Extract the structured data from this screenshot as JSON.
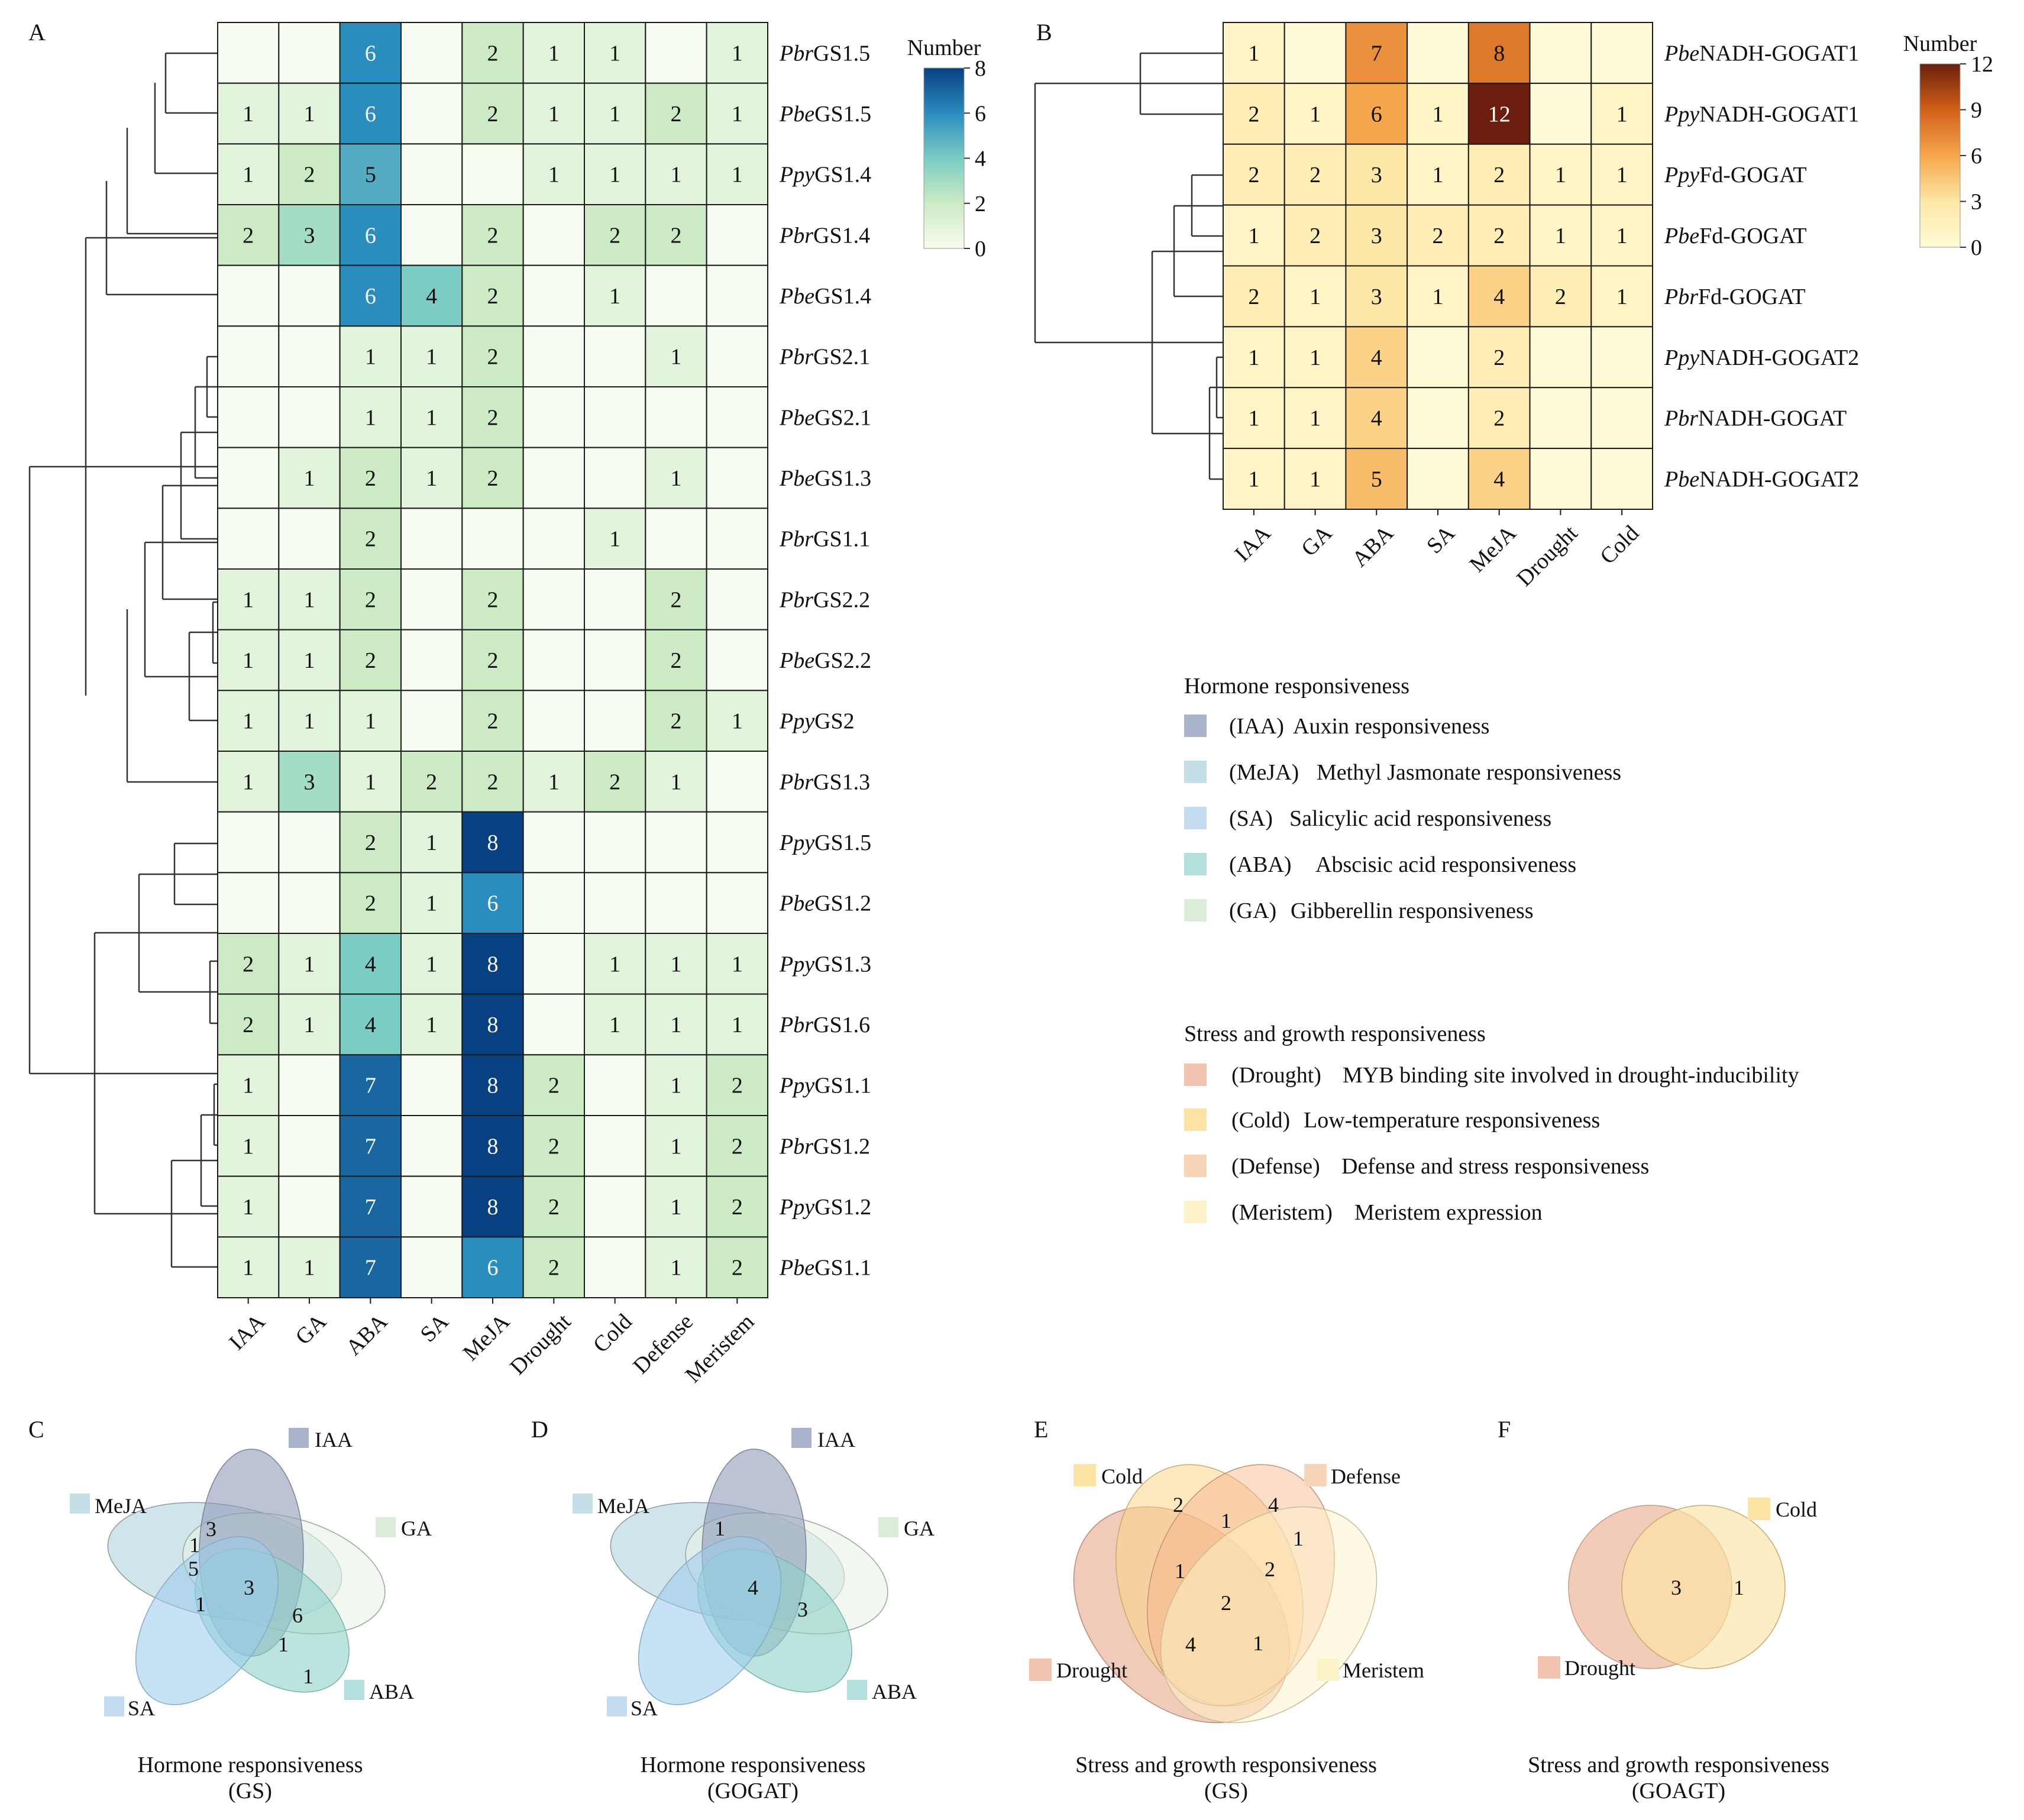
{
  "panels": {
    "A": "A",
    "B": "B",
    "C": "C",
    "D": "D",
    "E": "E",
    "F": "F"
  },
  "chart_data": [
    {
      "type": "heatmap",
      "panel": "A",
      "columns": [
        "IAA",
        "GA",
        "ABA",
        "SA",
        "MeJA",
        "Drought",
        "Cold",
        "Defense",
        "Meristem"
      ],
      "rows": [
        {
          "pre": "Pbr",
          "post": "GS1.5"
        },
        {
          "pre": "Pbe",
          "post": "GS1.5"
        },
        {
          "pre": "Ppy",
          "post": "GS1.4"
        },
        {
          "pre": "Pbr",
          "post": "GS1.4"
        },
        {
          "pre": "Pbe",
          "post": "GS1.4"
        },
        {
          "pre": "Pbr",
          "post": "GS2.1"
        },
        {
          "pre": "Pbe",
          "post": "GS2.1"
        },
        {
          "pre": "Pbe",
          "post": "GS1.3"
        },
        {
          "pre": "Pbr",
          "post": "GS1.1"
        },
        {
          "pre": "Pbr",
          "post": "GS2.2"
        },
        {
          "pre": "Pbe",
          "post": "GS2.2"
        },
        {
          "pre": "Ppy",
          "post": "GS2"
        },
        {
          "pre": "Pbr",
          "post": "GS1.3"
        },
        {
          "pre": "Ppy",
          "post": "GS1.5"
        },
        {
          "pre": "Pbe",
          "post": "GS1.2"
        },
        {
          "pre": "Ppy",
          "post": "GS1.3"
        },
        {
          "pre": "Pbr",
          "post": "GS1.6"
        },
        {
          "pre": "Ppy",
          "post": "GS1.1"
        },
        {
          "pre": "Pbr",
          "post": "GS1.2"
        },
        {
          "pre": "Ppy",
          "post": "GS1.2"
        },
        {
          "pre": "Pbe",
          "post": "GS1.1"
        }
      ],
      "values": [
        [
          0,
          0,
          6,
          0,
          2,
          1,
          1,
          0,
          1
        ],
        [
          1,
          1,
          6,
          0,
          2,
          1,
          1,
          2,
          1
        ],
        [
          1,
          2,
          5,
          0,
          0,
          1,
          1,
          1,
          1
        ],
        [
          2,
          3,
          6,
          0,
          2,
          0,
          2,
          2,
          0
        ],
        [
          0,
          0,
          6,
          4,
          2,
          0,
          1,
          0,
          0
        ],
        [
          0,
          0,
          1,
          1,
          2,
          0,
          0,
          1,
          0
        ],
        [
          0,
          0,
          1,
          1,
          2,
          0,
          0,
          0,
          0
        ],
        [
          0,
          1,
          2,
          1,
          2,
          0,
          0,
          1,
          0
        ],
        [
          0,
          0,
          2,
          0,
          0,
          0,
          1,
          0,
          0
        ],
        [
          1,
          1,
          2,
          0,
          2,
          0,
          0,
          2,
          0
        ],
        [
          1,
          1,
          2,
          0,
          2,
          0,
          0,
          2,
          0
        ],
        [
          1,
          1,
          1,
          0,
          2,
          0,
          0,
          2,
          1
        ],
        [
          1,
          3,
          1,
          2,
          2,
          1,
          2,
          1,
          0
        ],
        [
          0,
          0,
          2,
          1,
          8,
          0,
          0,
          0,
          0
        ],
        [
          0,
          0,
          2,
          1,
          6,
          0,
          0,
          0,
          0
        ],
        [
          2,
          1,
          4,
          1,
          8,
          0,
          1,
          1,
          1
        ],
        [
          2,
          1,
          4,
          1,
          8,
          0,
          1,
          1,
          1
        ],
        [
          1,
          0,
          7,
          0,
          8,
          2,
          0,
          1,
          2
        ],
        [
          1,
          0,
          7,
          0,
          8,
          2,
          0,
          1,
          2
        ],
        [
          1,
          0,
          7,
          0,
          8,
          2,
          0,
          1,
          2
        ],
        [
          1,
          1,
          7,
          0,
          6,
          2,
          0,
          1,
          2
        ]
      ],
      "legend": {
        "title": "Number",
        "ticks": [
          "0",
          "2",
          "4",
          "6",
          "8"
        ],
        "min": 0,
        "max": 8,
        "colors": [
          "#f7fcf0",
          "#ccebc5",
          "#7bccc4",
          "#2b8cbe",
          "#084081"
        ]
      }
    },
    {
      "type": "heatmap",
      "panel": "B",
      "columns": [
        "IAA",
        "GA",
        "ABA",
        "SA",
        "MeJA",
        "Drought",
        "Cold"
      ],
      "rows": [
        {
          "pre": "Pbe",
          "post": "NADH-GOGAT1"
        },
        {
          "pre": "Ppy",
          "post": "NADH-GOGAT1"
        },
        {
          "pre": "Ppy",
          "post": "Fd-GOGAT"
        },
        {
          "pre": "Pbe",
          "post": "Fd-GOGAT"
        },
        {
          "pre": "Pbr",
          "post": "Fd-GOGAT"
        },
        {
          "pre": "Ppy",
          "post": "NADH-GOGAT2"
        },
        {
          "pre": "Pbr",
          "post": "NADH-GOGAT"
        },
        {
          "pre": "Pbe",
          "post": "NADH-GOGAT2"
        }
      ],
      "values": [
        [
          1,
          0,
          7,
          0,
          8,
          0,
          0
        ],
        [
          2,
          1,
          6,
          1,
          12,
          0,
          1
        ],
        [
          2,
          2,
          3,
          1,
          2,
          1,
          1
        ],
        [
          1,
          2,
          3,
          2,
          2,
          1,
          1
        ],
        [
          2,
          1,
          3,
          1,
          4,
          2,
          1
        ],
        [
          1,
          1,
          4,
          0,
          2,
          0,
          0
        ],
        [
          1,
          1,
          4,
          0,
          2,
          0,
          0
        ],
        [
          1,
          1,
          5,
          0,
          4,
          0,
          0
        ]
      ],
      "legend": {
        "title": "Number",
        "ticks": [
          "0",
          "3",
          "6",
          "9",
          "12"
        ],
        "min": 0,
        "max": 12,
        "colors": [
          "#fffbd6",
          "#fde7a6",
          "#f6a74d",
          "#d2601a",
          "#6b1e0e"
        ]
      }
    },
    {
      "type": "venn",
      "panel": "C",
      "sets": [
        "IAA",
        "GA",
        "ABA",
        "SA",
        "MeJA"
      ],
      "region_counts": [
        "3",
        "1",
        "5",
        "1",
        "3",
        "6",
        "1",
        "1"
      ],
      "caption": [
        "Hormone responsiveness",
        "(GS)"
      ]
    },
    {
      "type": "venn",
      "panel": "D",
      "sets": [
        "IAA",
        "GA",
        "ABA",
        "SA",
        "MeJA"
      ],
      "region_counts": [
        "1",
        "4",
        "3"
      ],
      "caption": [
        "Hormone responsiveness",
        "(GOGAT)"
      ]
    },
    {
      "type": "venn",
      "panel": "E",
      "sets": [
        "Cold",
        "Defense",
        "Drought",
        "Meristem"
      ],
      "region_counts": [
        "2",
        "1",
        "4",
        "1",
        "1",
        "2",
        "2",
        "4",
        "1"
      ],
      "caption": [
        "Stress and growth responsiveness",
        "(GS)"
      ]
    },
    {
      "type": "venn",
      "panel": "F",
      "sets": [
        "Cold",
        "Drought"
      ],
      "region_counts": [
        "3",
        "1"
      ],
      "caption": [
        "Stress and growth responsiveness",
        "(GOAGT)"
      ]
    }
  ],
  "legend_text": {
    "hormone_title": "Hormone responsiveness",
    "hormone": [
      {
        "abbr": "(IAA)",
        "desc": "Auxin responsiveness",
        "color": "#aab4cc"
      },
      {
        "abbr": "(MeJA)",
        "desc": "Methyl Jasmonate responsiveness",
        "color": "#c5dfe6"
      },
      {
        "abbr": "(SA)",
        "desc": "Salicylic acid responsiveness",
        "color": "#c3dcef"
      },
      {
        "abbr": "(ABA)",
        "desc": "Abscisic acid responsiveness",
        "color": "#b3e0dc"
      },
      {
        "abbr": "(GA)",
        "desc": "Gibberellin responsiveness",
        "color": "#dbecd9"
      }
    ],
    "stress_title": "Stress and growth responsiveness",
    "stress": [
      {
        "abbr": "(Drought)",
        "desc": "MYB binding site involved in drought-inducibility",
        "color": "#f2c4b0"
      },
      {
        "abbr": "(Cold)",
        "desc": "Low-temperature responsiveness",
        "color": "#fce3a4"
      },
      {
        "abbr": "(Defense)",
        "desc": "Defense and stress responsiveness",
        "color": "#f8d4b8"
      },
      {
        "abbr": "(Meristem)",
        "desc": "Meristem expression",
        "color": "#fcf3c8"
      }
    ]
  }
}
